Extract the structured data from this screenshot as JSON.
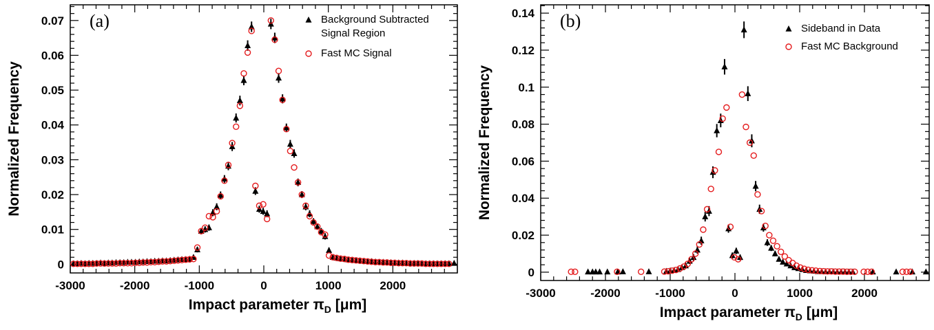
{
  "chart_data": [
    {
      "type": "scatter",
      "panel_label": "(a)",
      "xlabel": "Impact parameter π",
      "xlabel_sub": "D",
      "xlabel_unit": " [μm]",
      "ylabel": "Normalized Frequency",
      "xlim": [
        -3000,
        3000
      ],
      "ylim": [
        -0.0025,
        0.0745
      ],
      "xticks": [
        -3000,
        -2000,
        -1000,
        0,
        1000,
        2000
      ],
      "xtick_labels": [
        "-3000",
        "-2000",
        "-1000",
        "0",
        "1000",
        "2000"
      ],
      "yticks": [
        0,
        0.01,
        0.02,
        0.03,
        0.04,
        0.05,
        0.06,
        0.07
      ],
      "ytick_labels": [
        "0",
        "0.01",
        "0.02",
        "0.03",
        "0.04",
        "0.05",
        "0.06",
        "0.07"
      ],
      "legend": {
        "position": "top-right",
        "entries": [
          {
            "label_lines": [
              "Background Subtracted",
              "Signal Region"
            ],
            "marker": "triangle",
            "color": "#000000"
          },
          {
            "label_lines": [
              "Fast MC Signal"
            ],
            "marker": "circle",
            "color": "#e41a1c"
          }
        ]
      },
      "series": [
        {
          "name": "Background Subtracted Signal Region",
          "marker": "triangle",
          "color": "#000000",
          "x": [
            -2950,
            -2890,
            -2830,
            -2770,
            -2710,
            -2650,
            -2590,
            -2530,
            -2470,
            -2410,
            -2350,
            -2290,
            -2230,
            -2170,
            -2110,
            -2050,
            -1990,
            -1930,
            -1870,
            -1810,
            -1750,
            -1690,
            -1630,
            -1570,
            -1510,
            -1450,
            -1390,
            -1330,
            -1270,
            -1210,
            -1150,
            -1090,
            -1030,
            -970,
            -910,
            -850,
            -790,
            -730,
            -670,
            -610,
            -550,
            -490,
            -430,
            -370,
            -310,
            -250,
            -190,
            -130,
            -70,
            -10,
            50,
            110,
            170,
            230,
            290,
            350,
            410,
            470,
            530,
            590,
            650,
            710,
            770,
            830,
            890,
            950,
            1010,
            1070,
            1130,
            1190,
            1250,
            1310,
            1370,
            1430,
            1490,
            1550,
            1610,
            1670,
            1730,
            1790,
            1850,
            1910,
            1970,
            2030,
            2090,
            2150,
            2210,
            2270,
            2330,
            2390,
            2450,
            2510,
            2570,
            2630,
            2690,
            2750,
            2810,
            2870,
            2950
          ],
          "y": [
            0.0002,
            0.0002,
            0.0003,
            0.0002,
            0.0003,
            0.0003,
            0.0003,
            0.0004,
            0.0003,
            0.0004,
            0.0004,
            0.0005,
            0.0005,
            0.0005,
            0.0006,
            0.0006,
            0.0006,
            0.0007,
            0.0007,
            0.0008,
            0.0008,
            0.0009,
            0.0009,
            0.001,
            0.001,
            0.0011,
            0.0012,
            0.0013,
            0.0014,
            0.0014,
            0.0015,
            0.002,
            0.0042,
            0.0095,
            0.01,
            0.0105,
            0.0148,
            0.0165,
            0.0198,
            0.0245,
            0.0282,
            0.0338,
            0.042,
            0.047,
            0.0528,
            0.0628,
            0.0682,
            0.021,
            0.0158,
            0.0152,
            0.0145,
            0.069,
            0.065,
            0.0535,
            0.0475,
            0.0392,
            0.0345,
            0.0318,
            0.0235,
            0.02,
            0.0165,
            0.0145,
            0.0123,
            0.0108,
            0.0095,
            0.008,
            0.004,
            0.002,
            0.0018,
            0.0016,
            0.0015,
            0.0013,
            0.0012,
            0.0011,
            0.001,
            0.0009,
            0.0008,
            0.0008,
            0.0007,
            0.0006,
            0.0006,
            0.0005,
            0.0005,
            0.0004,
            0.0004,
            0.0004,
            0.0003,
            0.0003,
            0.0003,
            0.0003,
            0.0002,
            0.0002,
            0.0002,
            0.0002,
            0.0002,
            0.0002,
            0.0002,
            0.0002,
            0.0003
          ],
          "yerr": [
            0.0006,
            0.0006,
            0.0006,
            0.0006,
            0.0006,
            0.0006,
            0.0006,
            0.0006,
            0.0006,
            0.0006,
            0.0006,
            0.0006,
            0.0006,
            0.0006,
            0.0006,
            0.0006,
            0.0006,
            0.0006,
            0.0006,
            0.0006,
            0.0006,
            0.0006,
            0.0006,
            0.0006,
            0.0006,
            0.0006,
            0.0006,
            0.0006,
            0.0006,
            0.0006,
            0.0006,
            0.0007,
            0.0008,
            0.0009,
            0.0009,
            0.0009,
            0.001,
            0.001,
            0.0011,
            0.0011,
            0.0012,
            0.0013,
            0.0013,
            0.0014,
            0.0014,
            0.0015,
            0.0015,
            0.0011,
            0.001,
            0.001,
            0.001,
            0.0015,
            0.0015,
            0.0014,
            0.0013,
            0.0012,
            0.0012,
            0.0012,
            0.0011,
            0.001,
            0.001,
            0.001,
            0.0009,
            0.0009,
            0.0009,
            0.0009,
            0.0008,
            0.0007,
            0.0006,
            0.0006,
            0.0006,
            0.0006,
            0.0006,
            0.0006,
            0.0006,
            0.0006,
            0.0006,
            0.0006,
            0.0006,
            0.0006,
            0.0006,
            0.0006,
            0.0006,
            0.0006,
            0.0006,
            0.0006,
            0.0006,
            0.0006,
            0.0006,
            0.0006,
            0.0006,
            0.0006,
            0.0006,
            0.0006,
            0.0006,
            0.0006,
            0.0006,
            0.0006,
            0.0006
          ]
        },
        {
          "name": "Fast MC Signal",
          "marker": "circle",
          "color": "#e41a1c",
          "x": [
            -2950,
            -2890,
            -2830,
            -2770,
            -2710,
            -2650,
            -2590,
            -2530,
            -2470,
            -2410,
            -2350,
            -2290,
            -2230,
            -2170,
            -2110,
            -2050,
            -1990,
            -1930,
            -1870,
            -1810,
            -1750,
            -1690,
            -1630,
            -1570,
            -1510,
            -1450,
            -1390,
            -1330,
            -1270,
            -1210,
            -1150,
            -1090,
            -1030,
            -970,
            -910,
            -850,
            -790,
            -730,
            -670,
            -610,
            -550,
            -490,
            -430,
            -370,
            -310,
            -250,
            -190,
            -130,
            -70,
            -10,
            50,
            110,
            170,
            230,
            290,
            350,
            410,
            470,
            530,
            590,
            650,
            710,
            770,
            830,
            890,
            950,
            1010,
            1070,
            1130,
            1190,
            1250,
            1310,
            1370,
            1430,
            1490,
            1550,
            1610,
            1670,
            1730,
            1790,
            1850,
            1910,
            1970,
            2030,
            2090,
            2150,
            2210,
            2270,
            2330,
            2390,
            2450,
            2510,
            2570,
            2630,
            2690,
            2750,
            2810,
            2870
          ],
          "y": [
            0.0001,
            0.0001,
            0.0001,
            0.0001,
            0.0001,
            0.0001,
            0.0002,
            0.0002,
            0.0002,
            0.0002,
            0.0002,
            0.0002,
            0.0003,
            0.0003,
            0.0003,
            0.0003,
            0.0004,
            0.0004,
            0.0005,
            0.0005,
            0.0006,
            0.0006,
            0.0007,
            0.0008,
            0.0008,
            0.0009,
            0.001,
            0.0011,
            0.0012,
            0.0013,
            0.0014,
            0.0015,
            0.0048,
            0.0095,
            0.0105,
            0.0138,
            0.0135,
            0.0152,
            0.0195,
            0.024,
            0.0285,
            0.0348,
            0.0395,
            0.0455,
            0.0548,
            0.0608,
            0.067,
            0.0225,
            0.0168,
            0.0172,
            0.013,
            0.07,
            0.0645,
            0.0555,
            0.0472,
            0.0388,
            0.0325,
            0.0278,
            0.0235,
            0.02,
            0.0168,
            0.0138,
            0.012,
            0.0108,
            0.0092,
            0.0085,
            0.0025,
            0.002,
            0.0018,
            0.0016,
            0.0015,
            0.0013,
            0.0012,
            0.0011,
            0.001,
            0.0009,
            0.0008,
            0.0007,
            0.0006,
            0.0006,
            0.0005,
            0.0005,
            0.0004,
            0.0004,
            0.0003,
            0.0003,
            0.0003,
            0.0002,
            0.0002,
            0.0002,
            0.0002,
            0.0001,
            0.0001,
            0.0001,
            0.0001,
            0.0001,
            0.0001,
            0.0001
          ],
          "yerr": []
        }
      ]
    },
    {
      "type": "scatter",
      "panel_label": "(b)",
      "xlabel": "Impact parameter π",
      "xlabel_sub": "D",
      "xlabel_unit": " [μm]",
      "ylabel": "Normalized Frequency",
      "xlim": [
        -3000,
        3000
      ],
      "ylim": [
        -0.0045,
        0.1445
      ],
      "xticks": [
        -3000,
        -2000,
        -1000,
        0,
        1000,
        2000
      ],
      "xtick_labels": [
        "-3000",
        "-2000",
        "-1000",
        "0",
        "1000",
        "2000"
      ],
      "yticks": [
        0,
        0.02,
        0.04,
        0.06,
        0.08,
        0.1,
        0.12,
        0.14
      ],
      "ytick_labels": [
        "0",
        "0.02",
        "0.04",
        "0.06",
        "0.08",
        "0.1",
        "0.12",
        "0.14"
      ],
      "legend": {
        "position": "top-right",
        "entries": [
          {
            "label_lines": [
              "Sideband in Data"
            ],
            "marker": "triangle",
            "color": "#000000"
          },
          {
            "label_lines": [
              "Fast MC Background"
            ],
            "marker": "circle",
            "color": "#e41a1c"
          }
        ]
      },
      "series": [
        {
          "name": "Sideband in Data",
          "marker": "triangle",
          "color": "#000000",
          "x": [
            -2270,
            -2200,
            -2150,
            -2090,
            -1970,
            -1810,
            -1730,
            -1330,
            -1060,
            -1000,
            -940,
            -880,
            -820,
            -760,
            -700,
            -640,
            -580,
            -520,
            -460,
            -400,
            -340,
            -280,
            -220,
            -160,
            -100,
            -40,
            20,
            80,
            140,
            200,
            260,
            320,
            380,
            440,
            500,
            560,
            620,
            680,
            740,
            800,
            860,
            920,
            980,
            1040,
            1100,
            1160,
            1220,
            1280,
            1340,
            1400,
            1460,
            1520,
            1580,
            1640,
            1700,
            1760,
            1820,
            2130,
            2490,
            2740,
            2950
          ],
          "y": [
            0.0002,
            0.0002,
            0.0002,
            0.0002,
            0.0002,
            0.0002,
            0.0003,
            0.0003,
            0.0005,
            0.0008,
            0.001,
            0.0015,
            0.0025,
            0.0035,
            0.006,
            0.008,
            0.012,
            0.017,
            0.03,
            0.033,
            0.054,
            0.0765,
            0.082,
            0.111,
            0.0235,
            0.009,
            0.0115,
            0.008,
            0.131,
            0.0965,
            0.071,
            0.0465,
            0.034,
            0.024,
            0.016,
            0.013,
            0.01,
            0.007,
            0.0055,
            0.0045,
            0.0035,
            0.0025,
            0.002,
            0.0015,
            0.001,
            0.0008,
            0.0006,
            0.0004,
            0.0004,
            0.0003,
            0.0003,
            0.0003,
            0.0002,
            0.0002,
            0.0002,
            0.0002,
            0.0002,
            0.0002,
            0.0002,
            0.0002,
            0.0002
          ],
          "yerr": [
            0.0008,
            0.0008,
            0.0008,
            0.0008,
            0.0008,
            0.0008,
            0.0008,
            0.0008,
            0.0009,
            0.001,
            0.0011,
            0.0012,
            0.0013,
            0.0014,
            0.0016,
            0.0018,
            0.002,
            0.0022,
            0.0026,
            0.0027,
            0.0032,
            0.0036,
            0.0037,
            0.0042,
            0.0022,
            0.0016,
            0.0017,
            0.0015,
            0.0045,
            0.004,
            0.0035,
            0.0028,
            0.0025,
            0.0021,
            0.0018,
            0.0016,
            0.0014,
            0.0012,
            0.0011,
            0.001,
            0.0009,
            0.0009,
            0.0009,
            0.0008,
            0.0008,
            0.0008,
            0.0008,
            0.0008,
            0.0008,
            0.0008,
            0.0008,
            0.0008,
            0.0008,
            0.0008,
            0.0008,
            0.0008,
            0.0008,
            0.0008,
            0.0008,
            0.0008,
            0.0008
          ]
        },
        {
          "name": "Fast MC Background",
          "marker": "circle",
          "color": "#e41a1c",
          "x": [
            -2530,
            -2470,
            -1820,
            -1450,
            -1090,
            -1030,
            -970,
            -910,
            -850,
            -790,
            -730,
            -670,
            -610,
            -550,
            -490,
            -430,
            -370,
            -310,
            -250,
            -190,
            -130,
            -70,
            -10,
            50,
            110,
            170,
            230,
            290,
            350,
            410,
            470,
            530,
            590,
            650,
            710,
            770,
            830,
            890,
            950,
            1010,
            1070,
            1130,
            1190,
            1250,
            1310,
            1370,
            1430,
            1490,
            1550,
            1610,
            1670,
            1730,
            1790,
            1850,
            1990,
            2050,
            2110,
            2590,
            2650,
            2710
          ],
          "y": [
            0.0002,
            0.0002,
            0.0002,
            0.0002,
            0.0003,
            0.0005,
            0.0008,
            0.0012,
            0.002,
            0.003,
            0.0045,
            0.007,
            0.01,
            0.015,
            0.023,
            0.034,
            0.045,
            0.055,
            0.065,
            0.083,
            0.089,
            0.0245,
            0.008,
            0.007,
            0.096,
            0.0785,
            0.07,
            0.063,
            0.042,
            0.033,
            0.025,
            0.02,
            0.017,
            0.014,
            0.011,
            0.0085,
            0.0065,
            0.005,
            0.0035,
            0.0025,
            0.0018,
            0.0013,
            0.001,
            0.0008,
            0.0006,
            0.0005,
            0.0004,
            0.0004,
            0.0003,
            0.0003,
            0.0003,
            0.0002,
            0.0002,
            0.0002,
            0.0002,
            0.0002,
            0.0002,
            0.0002,
            0.0002,
            0.0002
          ],
          "yerr": []
        }
      ]
    }
  ]
}
